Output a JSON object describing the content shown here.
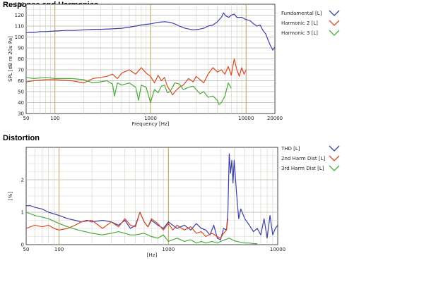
{
  "panels": {
    "response": {
      "title": "Response and Harmonics"
    },
    "distortion": {
      "title": "Distortion"
    }
  },
  "chart_data": [
    {
      "type": "line",
      "title": "Response and Harmonics",
      "xlabel": "Frequency [Hz]",
      "ylabel": "SPL [dB re 20u Pa]",
      "xscale": "log",
      "xlim": [
        50,
        20000
      ],
      "ylim": [
        30,
        130
      ],
      "xticks": [
        "50",
        "100",
        "1000",
        "10000",
        "20000"
      ],
      "xtick_values": [
        50,
        100,
        1000,
        10000,
        20000
      ],
      "yticks": [
        "30",
        "40",
        "50",
        "60",
        "70",
        "80",
        "90",
        "100",
        "110",
        "120",
        "130"
      ],
      "ytick_values": [
        30,
        40,
        50,
        60,
        70,
        80,
        90,
        100,
        110,
        120,
        130
      ],
      "grid": true,
      "legend_position": "right",
      "series": [
        {
          "name": "Fundamental [L]",
          "color": "#3a3fa8",
          "x": [
            50,
            60,
            70,
            80,
            100,
            130,
            160,
            200,
            250,
            300,
            400,
            500,
            600,
            700,
            800,
            1000,
            1200,
            1400,
            1600,
            1800,
            2000,
            2300,
            2600,
            2800,
            3200,
            3600,
            4000,
            4500,
            5000,
            5500,
            5800,
            6200,
            6600,
            7000,
            7500,
            8000,
            9000,
            10000,
            11000,
            12000,
            13000,
            14000,
            15000,
            16000,
            17000,
            18000,
            19000,
            20000
          ],
          "values": [
            104,
            104,
            105,
            105,
            105.5,
            106,
            106,
            106.5,
            107,
            107,
            107.5,
            108,
            109,
            110,
            111,
            112,
            113.5,
            114,
            113.5,
            112,
            110,
            108,
            107,
            106.5,
            107,
            108,
            110,
            111,
            114,
            118,
            122,
            119,
            118,
            120,
            121,
            118,
            118,
            116,
            115,
            112,
            110,
            111,
            106,
            103,
            97,
            92,
            88,
            91
          ]
        },
        {
          "name": "Harmonic 2 [L]",
          "color": "#d84a25",
          "x": [
            50,
            60,
            80,
            100,
            150,
            200,
            250,
            300,
            350,
            400,
            450,
            500,
            600,
            700,
            800,
            900,
            1000,
            1100,
            1200,
            1300,
            1400,
            1500,
            1600,
            1700,
            1800,
            2000,
            2200,
            2500,
            2800,
            3000,
            3300,
            3600,
            4000,
            4500,
            5000,
            5500,
            6000,
            6500,
            7000,
            7500,
            8000,
            8500,
            9000,
            9500,
            10000
          ],
          "values": [
            59,
            60,
            61,
            61,
            60,
            58,
            62,
            63,
            64,
            66,
            62,
            67,
            70,
            66,
            72,
            67,
            64,
            58,
            65,
            60,
            63,
            55,
            51,
            47,
            50,
            54,
            56,
            62,
            59,
            64,
            61,
            58,
            66,
            72,
            68,
            70,
            66,
            73,
            65,
            80,
            70,
            64,
            72,
            66,
            70
          ]
        },
        {
          "name": "Harmonic 3 [L]",
          "color": "#4aaa3c",
          "x": [
            50,
            60,
            80,
            100,
            150,
            200,
            250,
            300,
            350,
            400,
            420,
            450,
            500,
            600,
            700,
            750,
            800,
            900,
            1000,
            1100,
            1200,
            1300,
            1400,
            1500,
            1600,
            1800,
            2000,
            2200,
            2500,
            2800,
            3000,
            3300,
            3600,
            4000,
            4500,
            5000,
            5200,
            5500,
            6000,
            6500,
            7000
          ],
          "values": [
            63,
            62,
            63,
            62,
            62,
            61,
            58,
            59,
            60,
            57,
            46,
            58,
            56,
            58,
            54,
            42,
            56,
            54,
            40,
            52,
            49,
            55,
            56,
            49,
            50,
            58,
            57,
            52,
            54,
            55,
            52,
            48,
            50,
            45,
            46,
            42,
            38,
            40,
            46,
            58,
            53
          ]
        }
      ]
    },
    {
      "type": "line",
      "title": "Distortion",
      "xlabel": "[Hz]",
      "ylabel": "[%]",
      "xscale": "log",
      "xlim": [
        50,
        10000
      ],
      "ylim": [
        0,
        3
      ],
      "xticks": [
        "50",
        "100",
        "1000",
        "10000"
      ],
      "xtick_values": [
        50,
        100,
        1000,
        10000
      ],
      "yticks": [
        "0",
        "1",
        "2"
      ],
      "ytick_values": [
        0,
        1,
        2
      ],
      "grid": true,
      "legend_position": "right",
      "series": [
        {
          "name": "THD [L]",
          "color": "#3a3fa8",
          "x": [
            50,
            55,
            60,
            70,
            80,
            100,
            120,
            140,
            160,
            180,
            200,
            250,
            300,
            350,
            400,
            450,
            500,
            550,
            600,
            650,
            700,
            800,
            900,
            1000,
            1200,
            1400,
            1600,
            1800,
            2000,
            2200,
            2400,
            2600,
            2800,
            3000,
            3200,
            3400,
            3500,
            3600,
            3700,
            3800,
            3900,
            4000,
            4200,
            4400,
            4600,
            5000,
            5500,
            6000,
            6500,
            7000,
            7500,
            8000,
            8500,
            9000,
            9500,
            10000
          ],
          "values": [
            1.2,
            1.2,
            1.15,
            1.1,
            1.0,
            0.9,
            0.8,
            0.75,
            0.7,
            0.75,
            0.7,
            0.75,
            0.7,
            0.6,
            0.75,
            0.5,
            0.6,
            1.0,
            0.7,
            0.55,
            0.75,
            0.6,
            0.5,
            0.7,
            0.5,
            0.6,
            0.45,
            0.65,
            0.5,
            0.45,
            0.3,
            0.6,
            0.2,
            0.15,
            0.5,
            0.45,
            1.0,
            2.8,
            2.2,
            2.6,
            1.9,
            2.6,
            1.6,
            0.8,
            1.1,
            0.8,
            0.6,
            0.4,
            0.5,
            0.3,
            0.8,
            0.2,
            0.9,
            0.3,
            0.5,
            0.6
          ]
        },
        {
          "name": "2nd Harm Dist [L]",
          "color": "#d84a25",
          "x": [
            50,
            60,
            70,
            80,
            90,
            100,
            120,
            140,
            160,
            200,
            250,
            300,
            350,
            400,
            450,
            500,
            550,
            600,
            650,
            700,
            800,
            900,
            1000,
            1100,
            1200,
            1400,
            1600,
            1800,
            2000,
            2200,
            2500,
            2800,
            3000,
            3200,
            3400,
            3500
          ],
          "values": [
            0.5,
            0.6,
            0.55,
            0.6,
            0.5,
            0.45,
            0.5,
            0.6,
            0.7,
            0.75,
            0.5,
            0.7,
            0.55,
            0.8,
            0.6,
            0.55,
            1.0,
            0.7,
            0.55,
            0.8,
            0.65,
            0.45,
            0.65,
            0.45,
            0.6,
            0.45,
            0.55,
            0.35,
            0.4,
            0.25,
            0.35,
            0.25,
            0.2,
            0.35,
            0.45,
            0.8
          ]
        },
        {
          "name": "3rd Harm Dist [L]",
          "color": "#4aaa3c",
          "x": [
            50,
            60,
            70,
            80,
            100,
            120,
            150,
            200,
            250,
            300,
            350,
            400,
            450,
            500,
            600,
            700,
            800,
            900,
            1000,
            1200,
            1400,
            1600,
            1800,
            2000,
            2200,
            2500,
            2800,
            3000,
            3300,
            3600,
            4000,
            4500,
            5000,
            5500,
            6000,
            6500
          ],
          "values": [
            1.0,
            0.9,
            0.85,
            0.8,
            0.65,
            0.55,
            0.45,
            0.35,
            0.3,
            0.35,
            0.4,
            0.35,
            0.3,
            0.3,
            0.35,
            0.25,
            0.2,
            0.3,
            0.1,
            0.2,
            0.1,
            0.15,
            0.05,
            0.1,
            0.05,
            0.1,
            0.05,
            0.1,
            0.15,
            0.2,
            0.12,
            0.08,
            0.05,
            0.05,
            0.03,
            0.03
          ]
        }
      ]
    }
  ]
}
